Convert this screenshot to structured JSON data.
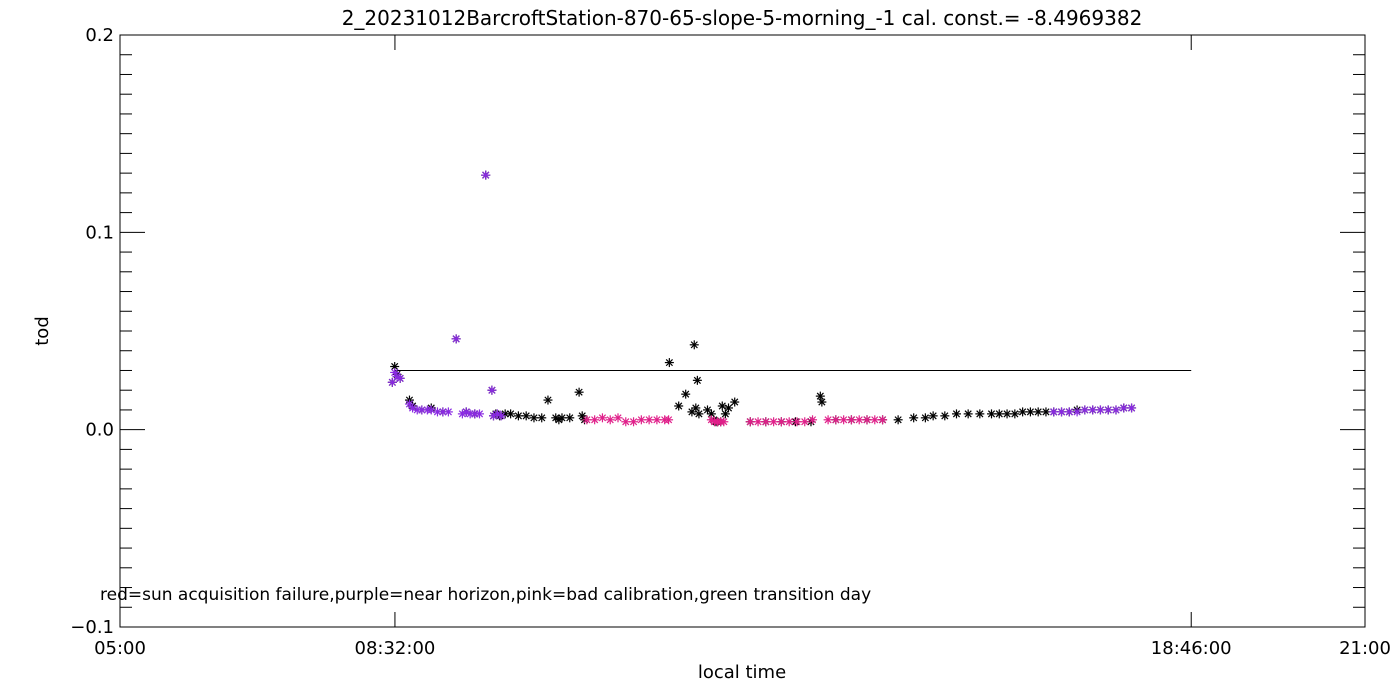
{
  "chart_data": {
    "type": "scatter",
    "title": "2_20231012BarcroftStation-870-65-slope-5-morning_-1 cal. const.= -8.4969382",
    "xlabel": "local time",
    "ylabel": "tod",
    "x_unit": "hours",
    "xlim": [
      5.0,
      21.0
    ],
    "ylim": [
      -0.1,
      0.2
    ],
    "x_ticks": [
      {
        "value": 5.0,
        "label": "05:00"
      },
      {
        "value": 8.533333,
        "label": "08:32:00"
      },
      {
        "value": 18.766667,
        "label": "18:46:00"
      },
      {
        "value": 21.0,
        "label": "21:00"
      }
    ],
    "y_ticks": [
      {
        "value": -0.1,
        "label": "-0.1"
      },
      {
        "value": 0.0,
        "label": "0.0"
      },
      {
        "value": 0.1,
        "label": "0.1"
      },
      {
        "value": 0.2,
        "label": "0.2"
      }
    ],
    "reference_line": {
      "x": [
        8.533333,
        18.766667
      ],
      "y": 0.03
    },
    "note": "red=sun acquisition failure,purple=near horizon,pink=bad calibration,green transition day",
    "colors": {
      "default": "#000000",
      "near_horizon": "#8a2be2",
      "bad_calibration": "#e0208a"
    },
    "series": [
      {
        "marker_color": "#000000",
        "x": [
          8.5,
          8.53,
          8.56,
          8.6,
          8.72,
          8.76,
          8.88,
          9.0,
          9.15,
          9.32,
          9.45,
          9.56,
          9.7,
          9.78,
          9.8,
          9.83,
          9.88,
          9.95,
          10.02,
          10.12,
          10.22,
          10.32,
          10.42,
          10.5,
          10.6,
          10.64,
          10.68,
          10.78,
          10.9,
          10.94,
          10.97,
          12.06,
          12.18,
          12.27,
          12.35,
          12.38,
          12.4,
          12.42,
          12.44,
          12.55,
          12.6,
          12.63,
          12.66,
          12.68,
          12.72,
          12.74,
          12.78,
          12.82,
          12.9,
          13.1,
          13.3,
          13.5,
          13.68,
          13.88,
          14.0,
          14.02,
          14.2,
          14.4,
          14.6,
          14.8,
          15.0,
          15.2,
          15.35,
          15.45,
          15.6,
          15.75,
          15.9,
          16.05,
          16.2,
          16.3,
          16.4,
          16.5,
          16.6,
          16.7,
          16.8,
          16.9,
          17.0,
          17.1,
          17.2,
          17.3,
          17.4,
          17.5,
          17.6,
          17.7,
          17.8,
          17.9,
          18.0
        ],
        "y": [
          0.024,
          0.032,
          0.028,
          0.026,
          0.015,
          0.012,
          0.01,
          0.011,
          0.009,
          0.046,
          0.009,
          0.008,
          0.129,
          0.02,
          0.007,
          0.008,
          0.007,
          0.008,
          0.008,
          0.007,
          0.007,
          0.006,
          0.006,
          0.015,
          0.006,
          0.005,
          0.006,
          0.006,
          0.019,
          0.007,
          0.005,
          0.034,
          0.012,
          0.018,
          0.009,
          0.043,
          0.011,
          0.025,
          0.008,
          0.01,
          0.008,
          0.005,
          0.004,
          0.004,
          0.004,
          0.012,
          0.008,
          0.011,
          0.014,
          0.004,
          0.004,
          0.004,
          0.004,
          0.004,
          0.017,
          0.014,
          0.005,
          0.005,
          0.005,
          0.005,
          0.005,
          0.006,
          0.006,
          0.007,
          0.007,
          0.008,
          0.008,
          0.008,
          0.008,
          0.008,
          0.008,
          0.008,
          0.009,
          0.009,
          0.009,
          0.009,
          0.009,
          0.009,
          0.009,
          0.01,
          0.01,
          0.01,
          0.01,
          0.01,
          0.01,
          0.011,
          0.011
        ]
      },
      {
        "marker_color": "#8a2be2",
        "x": [
          8.5,
          8.53,
          8.56,
          8.6,
          8.72,
          8.76,
          8.82,
          8.88,
          8.95,
          9.0,
          9.08,
          9.15,
          9.22,
          9.32,
          9.4,
          9.45,
          9.5,
          9.56,
          9.62,
          9.7,
          9.78,
          9.8,
          9.85,
          9.9,
          17.0,
          17.1,
          17.2,
          17.3,
          17.4,
          17.5,
          17.6,
          17.7,
          17.8,
          17.9,
          18.0
        ],
        "y": [
          0.024,
          0.029,
          0.027,
          0.026,
          0.013,
          0.011,
          0.01,
          0.01,
          0.01,
          0.01,
          0.009,
          0.009,
          0.009,
          0.046,
          0.008,
          0.009,
          0.008,
          0.008,
          0.008,
          0.129,
          0.02,
          0.007,
          0.008,
          0.007,
          0.009,
          0.009,
          0.009,
          0.009,
          0.01,
          0.01,
          0.01,
          0.01,
          0.01,
          0.011,
          0.011
        ]
      },
      {
        "marker_color": "#e0208a",
        "x": [
          11.0,
          11.1,
          11.2,
          11.3,
          11.4,
          11.5,
          11.6,
          11.7,
          11.8,
          11.9,
          12.0,
          12.05,
          12.6,
          12.64,
          12.68,
          12.72,
          12.76,
          13.1,
          13.2,
          13.3,
          13.4,
          13.5,
          13.6,
          13.7,
          13.8,
          13.9,
          14.1,
          14.2,
          14.3,
          14.4,
          14.5,
          14.6,
          14.7,
          14.8
        ],
        "y": [
          0.005,
          0.005,
          0.006,
          0.005,
          0.006,
          0.004,
          0.004,
          0.005,
          0.005,
          0.005,
          0.005,
          0.005,
          0.005,
          0.004,
          0.004,
          0.004,
          0.004,
          0.004,
          0.004,
          0.004,
          0.004,
          0.004,
          0.004,
          0.004,
          0.004,
          0.005,
          0.005,
          0.005,
          0.005,
          0.005,
          0.005,
          0.005,
          0.005,
          0.005
        ]
      }
    ]
  }
}
